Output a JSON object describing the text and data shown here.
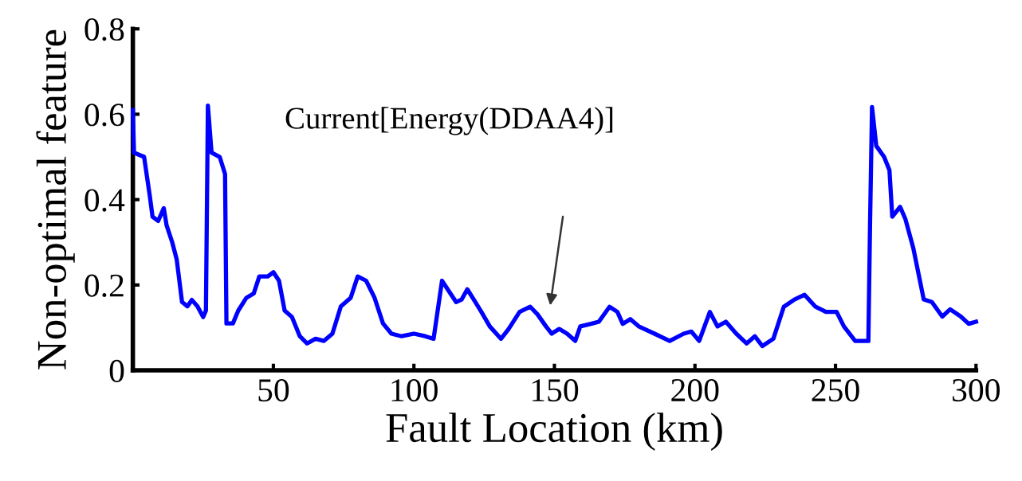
{
  "chart_data": {
    "type": "line",
    "xlabel": "Fault Location (km)",
    "ylabel": "Non-optimal feature",
    "xlim": [
      0,
      300
    ],
    "xticks": [
      50,
      100,
      150,
      200,
      250,
      300
    ],
    "ylim": [
      0,
      0.8
    ],
    "yticks": [
      0,
      0.2,
      0.4,
      0.6,
      0.8
    ],
    "grid": false,
    "marker": "none",
    "line_style": "solid",
    "annotations": [
      "Current[Energy(DDAA4)]"
    ],
    "series": [
      {
        "color": "#0000ff",
        "x": [
          0,
          0.4,
          4,
          6,
          7,
          9,
          11,
          12,
          14,
          15.6,
          17.5,
          19.4,
          21,
          23,
          25,
          26,
          26.7,
          28,
          30.9,
          32.8,
          33.3,
          35.6,
          37.5,
          40.4,
          43,
          45,
          48,
          50,
          52,
          54,
          56.6,
          59.4,
          62,
          65,
          68,
          71,
          74,
          77.5,
          80,
          83,
          86,
          89,
          92,
          95.6,
          100,
          104,
          107,
          110,
          112,
          115,
          117,
          119,
          121.3,
          124,
          127,
          131,
          133.7,
          137.6,
          141.4,
          144,
          147,
          149,
          151.7,
          154.5,
          157.4,
          159.2,
          163,
          165.8,
          169.6,
          172.4,
          174.3,
          177,
          180,
          185.6,
          191,
          196,
          198.7,
          201.5,
          205.3,
          208,
          211,
          214.7,
          218.4,
          221.3,
          224,
          227.9,
          231.6,
          235.4,
          239,
          242.9,
          246.6,
          250.4,
          253,
          257,
          261.7,
          262.3,
          263,
          264.5,
          267.3,
          269.2,
          270.2,
          273,
          274.9,
          277.7,
          281.4,
          284.3,
          288,
          290.8,
          294.6,
          297.4,
          300
        ],
        "values": [
          0.61,
          0.51,
          0.5,
          0.41,
          0.36,
          0.35,
          0.38,
          0.34,
          0.3,
          0.26,
          0.16,
          0.15,
          0.165,
          0.15,
          0.125,
          0.14,
          0.62,
          0.51,
          0.5,
          0.46,
          0.11,
          0.11,
          0.14,
          0.17,
          0.18,
          0.22,
          0.22,
          0.23,
          0.21,
          0.14,
          0.125,
          0.08,
          0.063,
          0.074,
          0.069,
          0.086,
          0.15,
          0.17,
          0.22,
          0.21,
          0.17,
          0.11,
          0.086,
          0.08,
          0.086,
          0.08,
          0.074,
          0.21,
          0.19,
          0.16,
          0.166,
          0.19,
          0.166,
          0.137,
          0.103,
          0.074,
          0.097,
          0.137,
          0.149,
          0.131,
          0.103,
          0.086,
          0.097,
          0.086,
          0.069,
          0.103,
          0.109,
          0.114,
          0.149,
          0.137,
          0.109,
          0.12,
          0.103,
          0.086,
          0.069,
          0.086,
          0.091,
          0.069,
          0.137,
          0.103,
          0.114,
          0.086,
          0.063,
          0.08,
          0.057,
          0.074,
          0.149,
          0.166,
          0.177,
          0.149,
          0.137,
          0.137,
          0.103,
          0.069,
          0.069,
          0.343,
          0.617,
          0.526,
          0.5,
          0.469,
          0.36,
          0.383,
          0.354,
          0.286,
          0.166,
          0.16,
          0.126,
          0.143,
          0.126,
          0.109,
          0.114
        ]
      }
    ]
  }
}
